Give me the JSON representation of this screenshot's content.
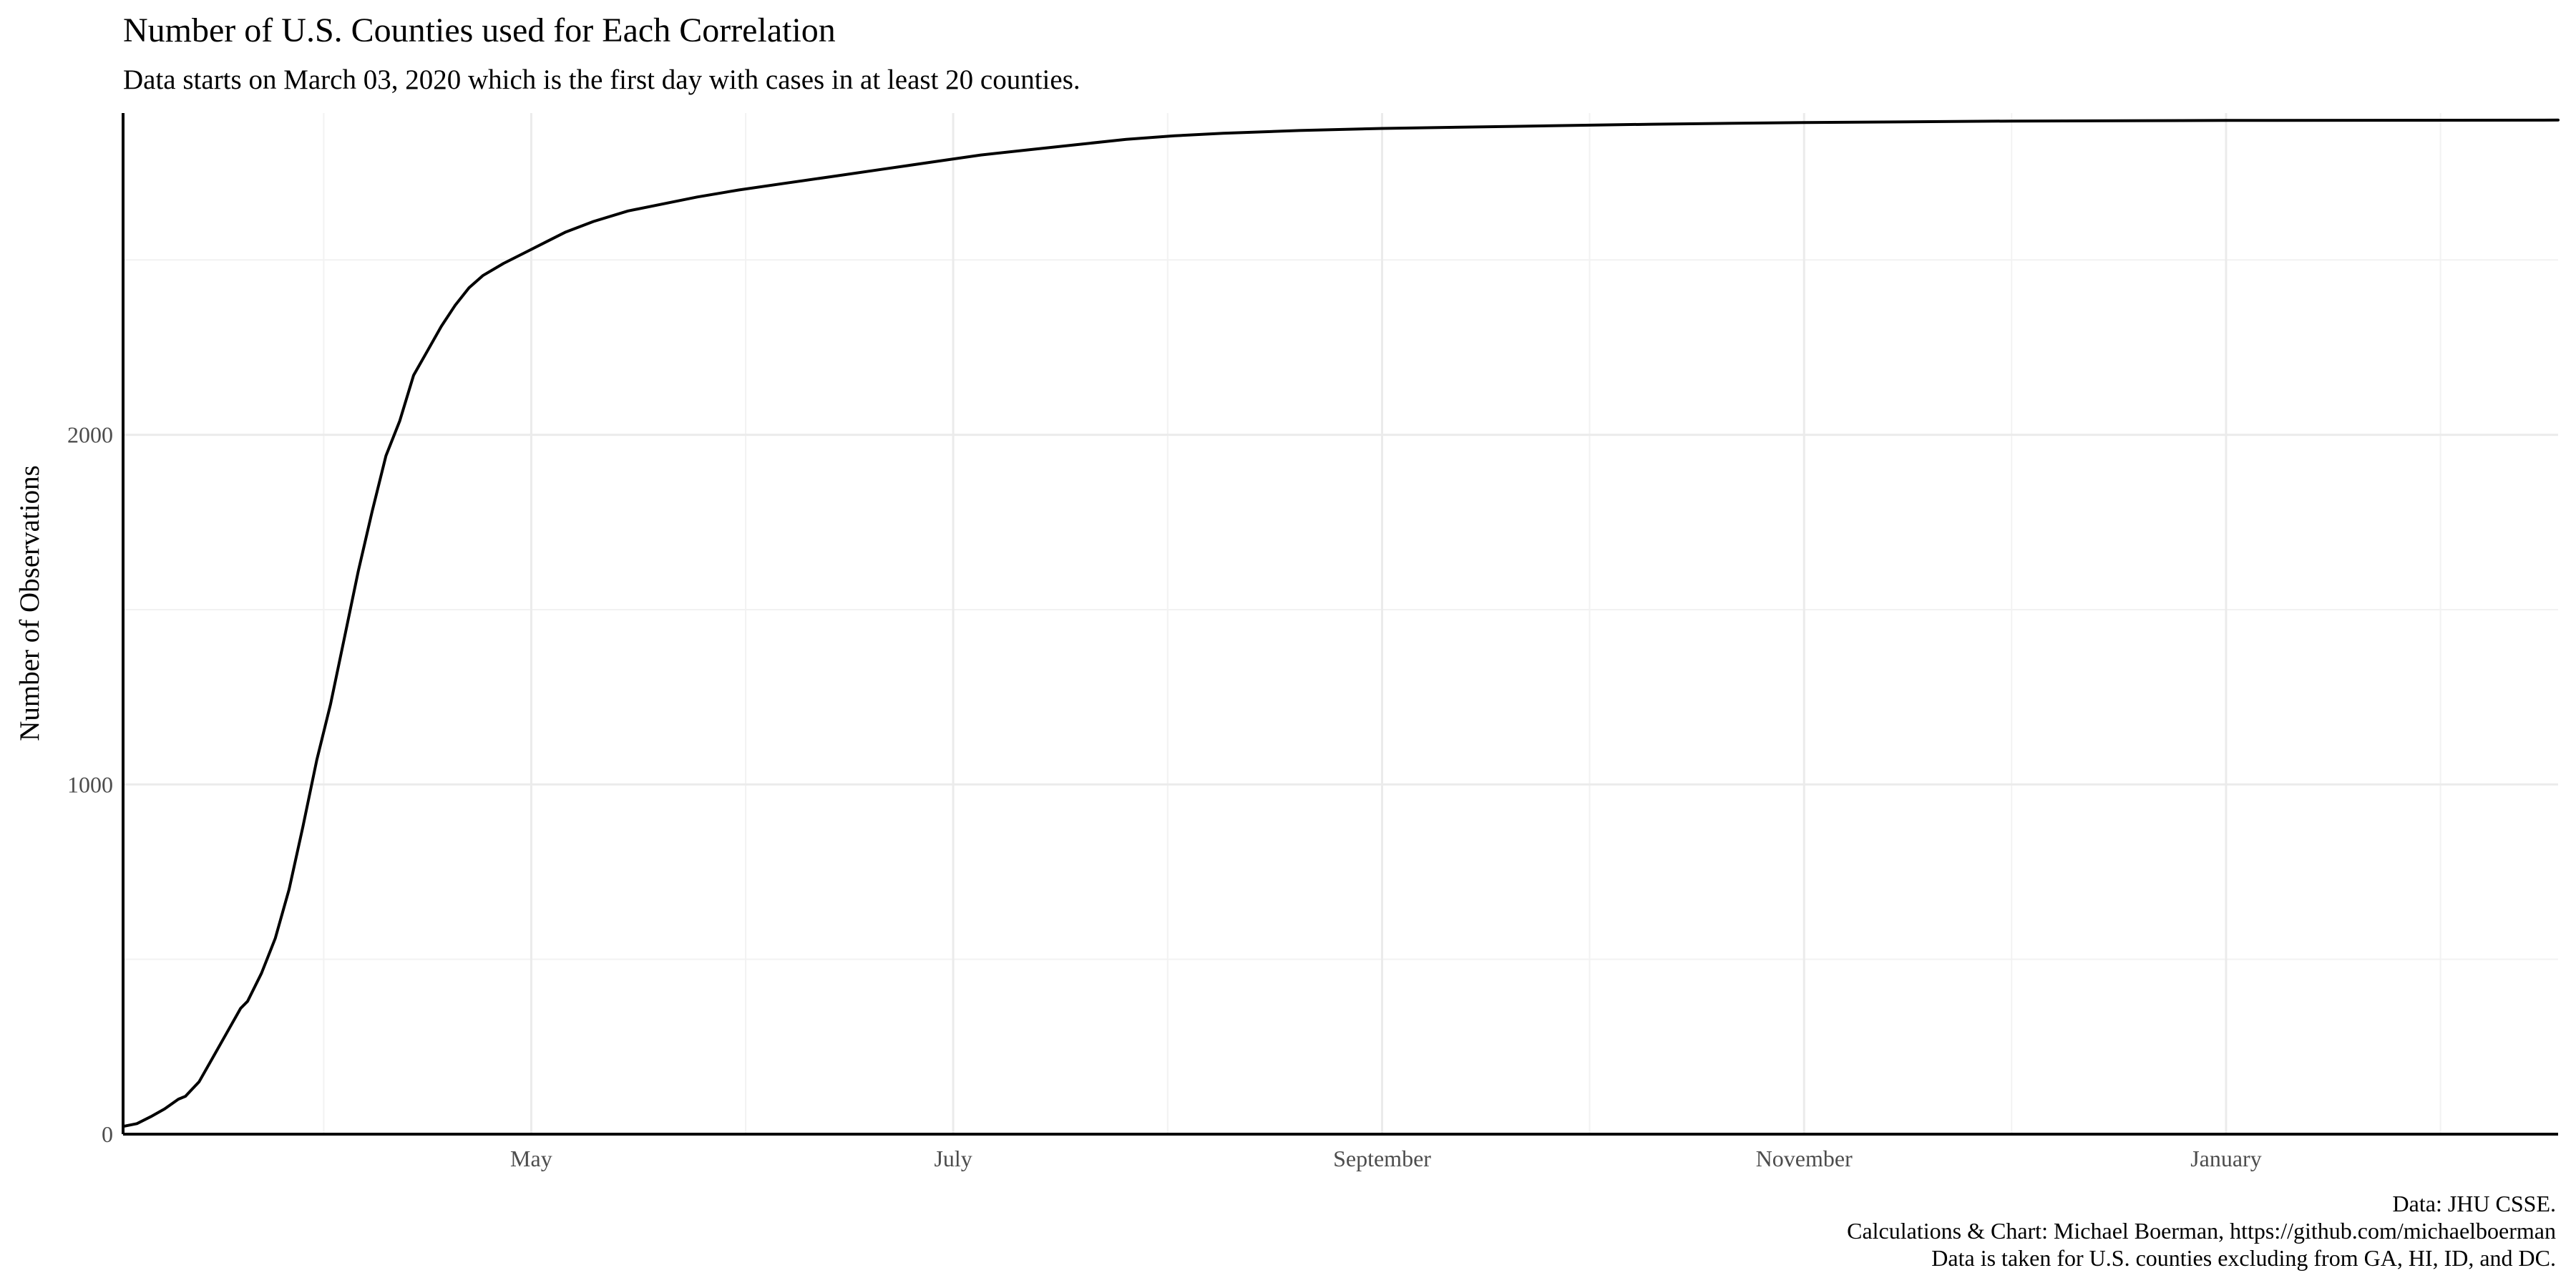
{
  "chart_data": {
    "type": "line",
    "title": "Number of U.S. Counties used for Each Correlation",
    "subtitle": "Data starts on March 03, 2020 which is the first day with cases in at least 20 counties.",
    "xlabel": "",
    "ylabel": "Number of Observations",
    "x_axis": {
      "type": "date",
      "range": [
        "2020-03-03",
        "2021-02-18"
      ],
      "tick_labels": [
        {
          "date": "2020-05-01",
          "label": "May"
        },
        {
          "date": "2020-07-01",
          "label": "July"
        },
        {
          "date": "2020-09-01",
          "label": "September"
        },
        {
          "date": "2020-11-01",
          "label": "November"
        },
        {
          "date": "2021-01-01",
          "label": "January"
        }
      ],
      "minor_grid_dates": [
        "2020-04-01",
        "2020-06-01",
        "2020-08-01",
        "2020-10-01",
        "2020-12-01",
        "2021-02-01"
      ]
    },
    "y_axis": {
      "range": [
        0,
        2920
      ],
      "ticks": [
        0,
        1000,
        2000
      ],
      "minor_grid": [
        500,
        1500,
        2500
      ]
    },
    "grid": true,
    "legend": "none",
    "series": [
      {
        "points": [
          [
            "2020-03-03",
            22
          ],
          [
            "2020-03-05",
            30
          ],
          [
            "2020-03-07",
            50
          ],
          [
            "2020-03-09",
            72
          ],
          [
            "2020-03-11",
            100
          ],
          [
            "2020-03-12",
            108
          ],
          [
            "2020-03-14",
            150
          ],
          [
            "2020-03-16",
            220
          ],
          [
            "2020-03-18",
            290
          ],
          [
            "2020-03-20",
            360
          ],
          [
            "2020-03-21",
            380
          ],
          [
            "2020-03-23",
            460
          ],
          [
            "2020-03-25",
            560
          ],
          [
            "2020-03-27",
            700
          ],
          [
            "2020-03-29",
            880
          ],
          [
            "2020-03-31",
            1070
          ],
          [
            "2020-04-02",
            1230
          ],
          [
            "2020-04-04",
            1420
          ],
          [
            "2020-04-06",
            1610
          ],
          [
            "2020-04-08",
            1780
          ],
          [
            "2020-04-10",
            1940
          ],
          [
            "2020-04-12",
            2040
          ],
          [
            "2020-04-14",
            2170
          ],
          [
            "2020-04-16",
            2240
          ],
          [
            "2020-04-18",
            2310
          ],
          [
            "2020-04-20",
            2370
          ],
          [
            "2020-04-22",
            2420
          ],
          [
            "2020-04-24",
            2455
          ],
          [
            "2020-04-27",
            2490
          ],
          [
            "2020-04-30",
            2520
          ],
          [
            "2020-05-03",
            2550
          ],
          [
            "2020-05-06",
            2580
          ],
          [
            "2020-05-10",
            2610
          ],
          [
            "2020-05-15",
            2640
          ],
          [
            "2020-05-20",
            2660
          ],
          [
            "2020-05-25",
            2680
          ],
          [
            "2020-05-31",
            2700
          ],
          [
            "2020-06-07",
            2720
          ],
          [
            "2020-06-14",
            2740
          ],
          [
            "2020-06-21",
            2760
          ],
          [
            "2020-06-28",
            2780
          ],
          [
            "2020-07-05",
            2800
          ],
          [
            "2020-07-12",
            2815
          ],
          [
            "2020-07-19",
            2830
          ],
          [
            "2020-07-26",
            2845
          ],
          [
            "2020-08-02",
            2855
          ],
          [
            "2020-08-09",
            2862
          ],
          [
            "2020-08-20",
            2870
          ],
          [
            "2020-09-01",
            2876
          ],
          [
            "2020-09-20",
            2882
          ],
          [
            "2020-10-10",
            2888
          ],
          [
            "2020-11-01",
            2893
          ],
          [
            "2020-12-01",
            2897
          ],
          [
            "2021-01-01",
            2899
          ],
          [
            "2021-02-18",
            2900
          ]
        ]
      }
    ]
  },
  "caption": {
    "line1": "Data: JHU CSSE.",
    "line2": "Calculations & Chart: Michael Boerman, https://github.com/michaelboerman",
    "line3": "Data is taken for U.S. counties excluding from GA, HI, ID, and DC."
  }
}
